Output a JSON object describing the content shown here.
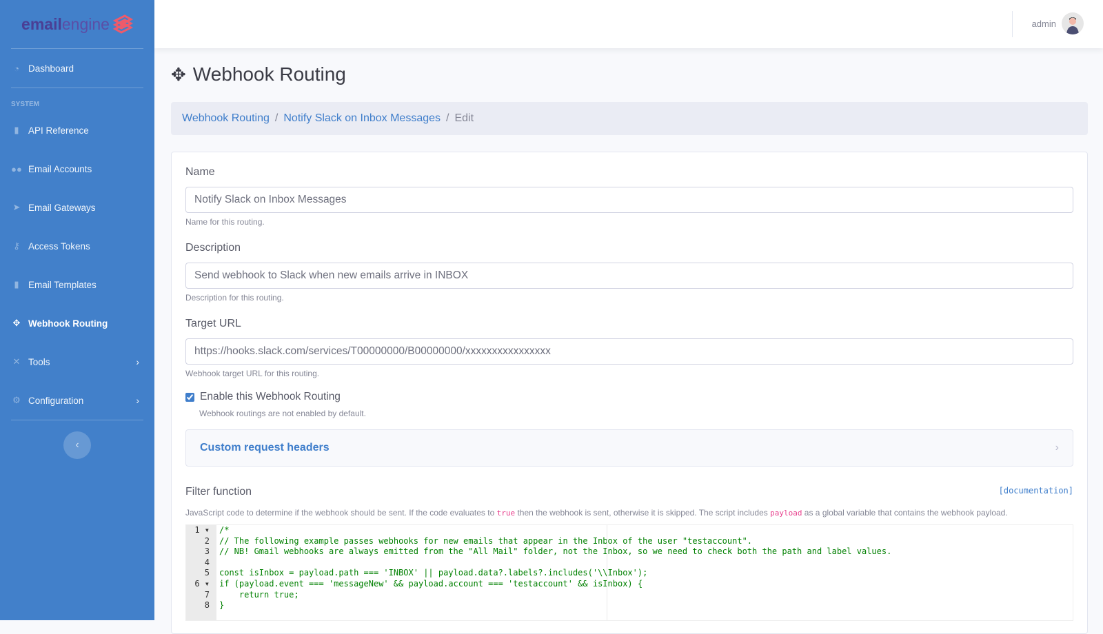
{
  "brand": {
    "part1": "email",
    "part2": "engine"
  },
  "sidebar": {
    "dashboard": "Dashboard",
    "heading": "SYSTEM",
    "items": [
      {
        "label": "API Reference",
        "icon": "file-code-icon"
      },
      {
        "label": "Email Accounts",
        "icon": "users-icon"
      },
      {
        "label": "Email Gateways",
        "icon": "paper-plane-icon"
      },
      {
        "label": "Access Tokens",
        "icon": "key-icon"
      },
      {
        "label": "Email Templates",
        "icon": "file-icon"
      },
      {
        "label": "Webhook Routing",
        "icon": "arrows-icon",
        "active": true
      },
      {
        "label": "Tools",
        "icon": "tools-icon"
      },
      {
        "label": "Configuration",
        "icon": "cog-icon"
      }
    ]
  },
  "user": {
    "name": "admin"
  },
  "page": {
    "title": "Webhook Routing"
  },
  "breadcrumb": [
    "Webhook Routing",
    "Notify Slack on Inbox Messages",
    "Edit"
  ],
  "form": {
    "name": {
      "label": "Name",
      "value": "Notify Slack on Inbox Messages",
      "help": "Name for this routing."
    },
    "description": {
      "label": "Description",
      "value": "Send webhook to Slack when new emails arrive in INBOX",
      "help": "Description for this routing."
    },
    "url": {
      "label": "Target URL",
      "value": "https://hooks.slack.com/services/T00000000/B00000000/xxxxxxxxxxxxxxxx",
      "help": "Webhook target URL for this routing."
    },
    "enable": {
      "label": "Enable this Webhook Routing",
      "checked": true,
      "help": "Webhook routings are not enabled by default."
    },
    "headers": {
      "label": "Custom request headers"
    },
    "filter": {
      "label": "Filter function",
      "doc_link": "[documentation]",
      "help_1": "JavaScript code to determine if the webhook should be sent. If the code evaluates to ",
      "help_true": "true",
      "help_2": " then the webhook is sent, otherwise it is skipped. The script includes ",
      "help_payload": "payload",
      "help_3": " as a global variable that contains the webhook payload.",
      "lines": [
        "/*",
        "// The following example passes webhooks for new emails that appear in the Inbox of the user \"testaccount\".",
        "// NB! Gmail webhooks are always emitted from the \"All Mail\" folder, not the Inbox, so we need to check both the path and label values.",
        "",
        "const isInbox = payload.path === 'INBOX' || payload.data?.labels?.includes('\\\\Inbox');",
        "if (payload.event === 'messageNew' && payload.account === 'testaccount' && isInbox) {",
        "    return true;",
        "}"
      ]
    }
  }
}
